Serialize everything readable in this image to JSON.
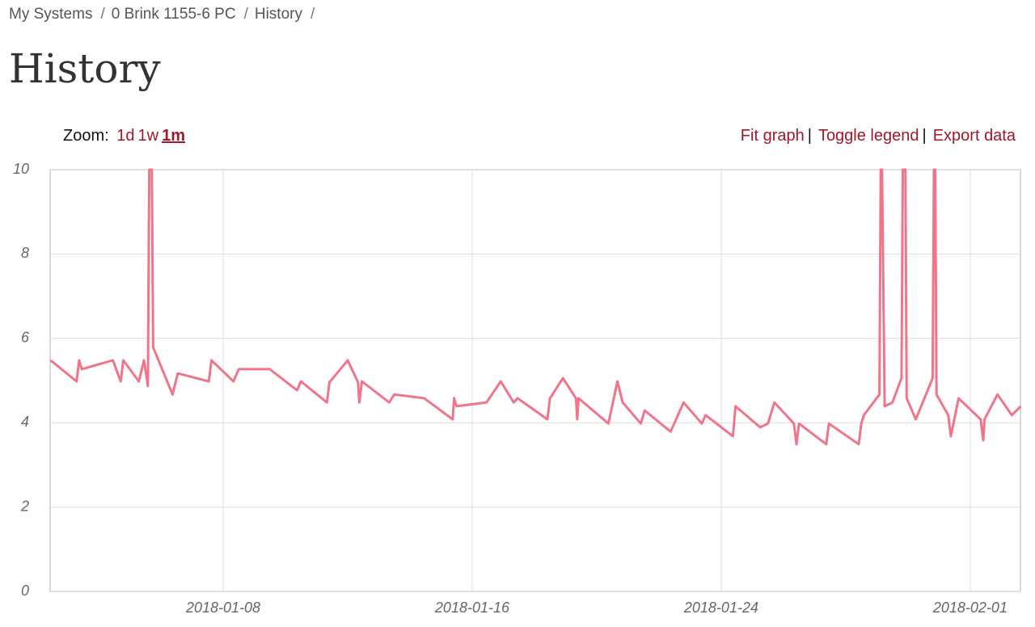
{
  "breadcrumb": [
    "My Systems",
    "0 Brink 1155-6 PC",
    "History"
  ],
  "title": "History",
  "zoom": {
    "label": "Zoom:",
    "options": [
      "1d",
      "1w",
      "1m"
    ],
    "active": 2
  },
  "actions": [
    "Fit graph",
    "Toggle legend",
    "Export data"
  ],
  "chart_data": {
    "type": "line",
    "x": [
      "2018-01-02T11:00",
      "2018-01-03T07:00",
      "2018-01-03T09:00",
      "2018-01-03T11:00",
      "2018-01-04T11:00",
      "2018-01-04T17:00",
      "2018-01-04T19:00",
      "2018-01-05T07:00",
      "2018-01-05T11:00",
      "2018-01-05T14:00",
      "2018-01-05T15:00",
      "2018-01-05T17:00",
      "2018-01-05T18:00",
      "2018-01-06T09:00",
      "2018-01-06T13:00",
      "2018-01-07T13:00",
      "2018-01-07T15:00",
      "2018-01-08T08:00",
      "2018-01-08T12:00",
      "2018-01-09T12:00",
      "2018-01-10T09:00",
      "2018-01-10T12:00",
      "2018-01-11T08:00",
      "2018-01-11T10:00",
      "2018-01-12T00:00",
      "2018-01-12T08:00",
      "2018-01-12T09:00",
      "2018-01-12T11:00",
      "2018-01-13T08:00",
      "2018-01-13T12:00",
      "2018-01-14T11:00",
      "2018-01-15T09:00",
      "2018-01-15T10:00",
      "2018-01-15T12:00",
      "2018-01-16T11:00",
      "2018-01-16T22:00",
      "2018-01-17T08:00",
      "2018-01-17T11:00",
      "2018-01-18T10:00",
      "2018-01-18T12:00",
      "2018-01-18T22:00",
      "2018-01-19T08:00",
      "2018-01-19T09:00",
      "2018-01-19T10:00",
      "2018-01-20T09:00",
      "2018-01-20T16:00",
      "2018-01-20T20:00",
      "2018-01-21T10:00",
      "2018-01-21T13:00",
      "2018-01-22T09:00",
      "2018-01-22T19:00",
      "2018-01-23T09:00",
      "2018-01-23T12:00",
      "2018-01-24T09:00",
      "2018-01-24T11:00",
      "2018-01-25T06:00",
      "2018-01-25T12:00",
      "2018-01-25T17:00",
      "2018-01-26T08:00",
      "2018-01-26T10:00",
      "2018-01-26T12:00",
      "2018-01-27T09:00",
      "2018-01-27T11:00",
      "2018-01-28T10:00",
      "2018-01-28T12:00",
      "2018-01-28T14:00",
      "2018-01-29T02:00",
      "2018-01-29T03:00",
      "2018-01-29T04:00",
      "2018-01-29T06:00",
      "2018-01-29T12:00",
      "2018-01-29T19:00",
      "2018-01-29T20:00",
      "2018-01-29T22:00",
      "2018-01-29T23:00",
      "2018-01-30T06:00",
      "2018-01-30T19:00",
      "2018-01-30T20:00",
      "2018-01-30T21:00",
      "2018-01-30T22:00",
      "2018-01-31T07:00",
      "2018-01-31T09:00",
      "2018-01-31T15:00",
      "2018-02-01T08:00",
      "2018-02-01T10:00",
      "2018-02-01T11:00",
      "2018-02-01T21:00",
      "2018-02-02T08:00",
      "2018-02-02T15:00"
    ],
    "values": [
      5.48,
      4.98,
      5.48,
      5.27,
      5.48,
      4.98,
      5.48,
      4.98,
      5.48,
      4.87,
      10,
      10,
      5.79,
      4.67,
      5.17,
      4.98,
      5.48,
      4.98,
      5.27,
      5.27,
      4.77,
      4.98,
      4.48,
      4.96,
      5.48,
      4.96,
      4.48,
      4.98,
      4.48,
      4.67,
      4.58,
      4.08,
      4.58,
      4.39,
      4.48,
      4.98,
      4.48,
      4.58,
      4.08,
      4.58,
      5.06,
      4.58,
      4.08,
      4.58,
      3.98,
      4.98,
      4.48,
      3.98,
      4.29,
      3.79,
      4.48,
      3.98,
      4.18,
      3.68,
      4.39,
      3.89,
      3.98,
      4.48,
      3.98,
      3.49,
      3.98,
      3.49,
      3.98,
      3.49,
      3.98,
      4.18,
      4.67,
      10,
      10,
      4.39,
      4.48,
      5.06,
      10,
      10,
      4.58,
      4.08,
      5.06,
      10,
      10,
      4.67,
      4.18,
      3.68,
      4.58,
      4.08,
      3.58,
      4.08,
      4.67,
      4.18,
      4.39
    ],
    "color": "#f0758a",
    "xlim": [
      "2018-01-02T10:36",
      "2018-02-02T14:42"
    ],
    "xticks": [
      "2018-01-08",
      "2018-01-16",
      "2018-01-24",
      "2018-02-01"
    ],
    "ylim": [
      0,
      10
    ],
    "yticks": [
      0,
      2,
      4,
      6,
      8,
      10
    ],
    "grid": true
  }
}
